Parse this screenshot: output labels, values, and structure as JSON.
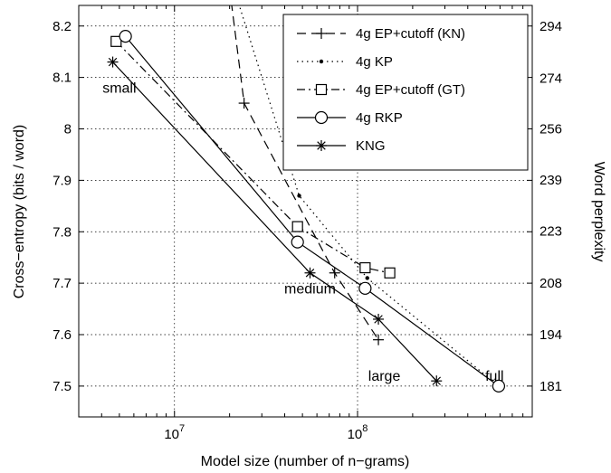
{
  "chart_data": {
    "type": "line",
    "title": "",
    "xlabel": "Model size (number of n−grams)",
    "ylabel": "Cross−entropy (bits / word)",
    "ylabel_right": "Word perplexity",
    "xscale": "log",
    "xlim": [
      3000000,
      900000000
    ],
    "ylim": [
      7.44,
      8.24
    ],
    "grid": true,
    "legend_position": "top-right",
    "x_ticks": [
      {
        "value": 10000000,
        "base": "10",
        "exp": "7"
      },
      {
        "value": 100000000,
        "base": "10",
        "exp": "8"
      }
    ],
    "y_ticks": [
      7.5,
      7.6,
      7.7,
      7.8,
      7.9,
      8,
      8.1,
      8.2
    ],
    "y_tick_labels": [
      "7.5",
      "7.6",
      "7.7",
      "7.8",
      "7.9",
      "8",
      "8.1",
      "8.2"
    ],
    "right_ticks": [
      {
        "value": 181,
        "label": "181"
      },
      {
        "value": 194,
        "label": "194"
      },
      {
        "value": 208,
        "label": "208"
      },
      {
        "value": 223,
        "label": "223"
      },
      {
        "value": 239,
        "label": "239"
      },
      {
        "value": 256,
        "label": "256"
      },
      {
        "value": 274,
        "label": "274"
      },
      {
        "value": 294,
        "label": "294"
      }
    ],
    "series": [
      {
        "name": "4g EP+cutoff (KN)",
        "line_style": "dashed",
        "marker": "plus",
        "color": "#000000",
        "points": [
          [
            24000000,
            8.05
          ],
          [
            75000000,
            7.72
          ],
          [
            130000000,
            7.59
          ]
        ],
        "extend_to": [
          17000000,
          8.47
        ]
      },
      {
        "name": "4g KP",
        "line_style": "dotted",
        "marker": "dot",
        "color": "#000000",
        "points": [
          [
            48000000,
            7.87
          ],
          [
            113000000,
            7.71
          ],
          [
            590000000,
            7.5
          ]
        ],
        "extend_to": [
          20000000,
          8.3
        ]
      },
      {
        "name": "4g EP+cutoff (GT)",
        "line_style": "dashdot",
        "marker": "square",
        "color": "#000000",
        "points": [
          [
            4800000,
            8.17
          ],
          [
            47000000,
            7.81
          ],
          [
            110000000,
            7.73
          ],
          [
            150000000,
            7.72
          ]
        ]
      },
      {
        "name": "4g RKP",
        "line_style": "solid",
        "marker": "circle",
        "color": "#000000",
        "points": [
          [
            5400000,
            8.18
          ],
          [
            47000000,
            7.78
          ],
          [
            110000000,
            7.69
          ],
          [
            590000000,
            7.5
          ]
        ]
      },
      {
        "name": "KNG",
        "line_style": "solid",
        "marker": "star",
        "color": "#000000",
        "points": [
          [
            4600000,
            8.13
          ],
          [
            55000000,
            7.72
          ],
          [
            130000000,
            7.63
          ],
          [
            270000000,
            7.51
          ]
        ]
      }
    ],
    "annotations": [
      {
        "text": "small",
        "x": 5000000,
        "y": 8.07
      },
      {
        "text": "medium",
        "x": 55000000,
        "y": 7.68
      },
      {
        "text": "large",
        "x": 140000000,
        "y": 7.51
      },
      {
        "text": "full",
        "x": 560000000,
        "y": 7.51
      }
    ]
  }
}
